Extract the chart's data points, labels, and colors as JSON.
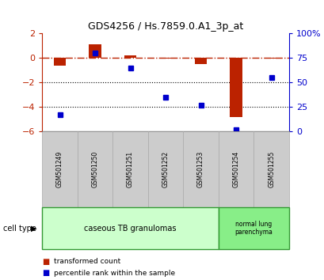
{
  "title": "GDS4256 / Hs.7859.0.A1_3p_at",
  "samples": [
    "GSM501249",
    "GSM501250",
    "GSM501251",
    "GSM501252",
    "GSM501253",
    "GSM501254",
    "GSM501255"
  ],
  "red_values": [
    -0.6,
    1.1,
    0.25,
    -0.05,
    -0.5,
    -4.8,
    -0.05
  ],
  "blue_percentile": [
    17,
    80,
    65,
    35,
    27,
    2,
    55
  ],
  "ylim_left": [
    -6,
    2
  ],
  "ylim_right": [
    0,
    100
  ],
  "yticks_left": [
    2,
    0,
    -2,
    -4,
    -6
  ],
  "yticks_right": [
    100,
    75,
    50,
    25,
    0
  ],
  "ytick_labels_right": [
    "100%",
    "75",
    "50",
    "25",
    "0"
  ],
  "red_color": "#bb2200",
  "blue_color": "#0000cc",
  "hline_color": "#bb2200",
  "dotted_color": "#000000",
  "group1_label": "caseous TB granulomas",
  "group2_label": "normal lung\nparenchyma",
  "group1_indices": [
    0,
    1,
    2,
    3,
    4
  ],
  "group2_indices": [
    5,
    6
  ],
  "cell_type_label": "cell type",
  "legend_red": "transformed count",
  "legend_blue": "percentile rank within the sample",
  "bar_width": 0.35,
  "group1_color": "#ccffcc",
  "group2_color": "#88ee88",
  "sample_box_color": "#cccccc",
  "sample_box_edge": "#aaaaaa"
}
